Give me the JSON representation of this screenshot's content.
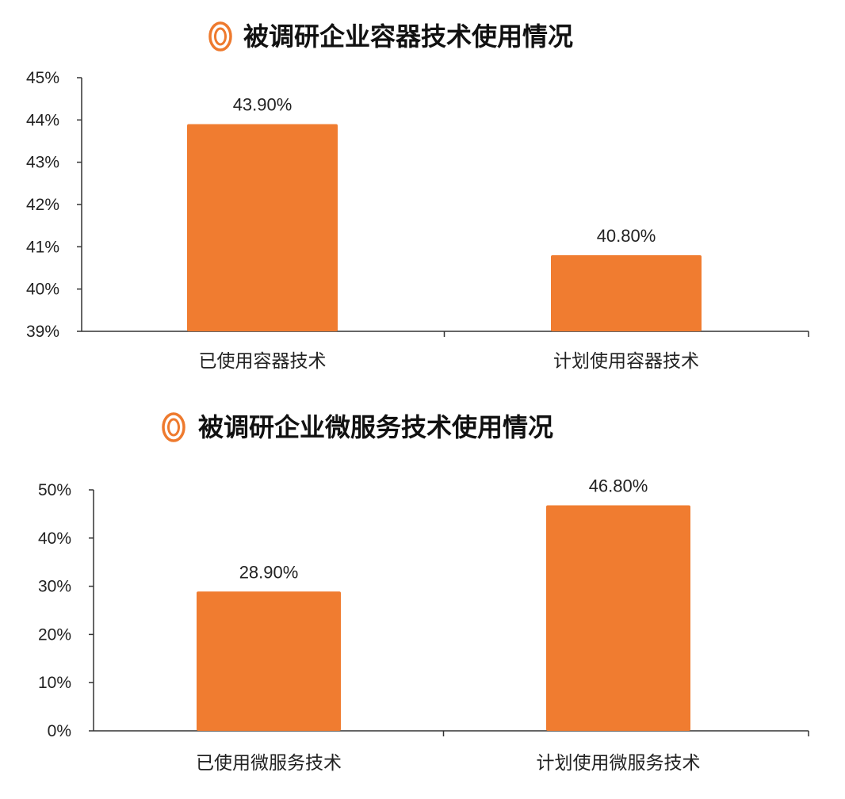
{
  "chart_data": [
    {
      "type": "bar",
      "title": "被调研企业容器技术使用情况",
      "categories": [
        "已使用容器技术",
        "计划使用容器技术"
      ],
      "values": [
        43.9,
        40.8
      ],
      "data_labels": [
        "43.90%",
        "40.80%"
      ],
      "ylim": [
        39,
        45
      ],
      "yticks": [
        39,
        40,
        41,
        42,
        43,
        44,
        45
      ],
      "ytick_labels": [
        "39%",
        "40%",
        "41%",
        "42%",
        "43%",
        "44%",
        "45%"
      ],
      "xlabel": "",
      "ylabel": "",
      "grid": false,
      "legend": "none"
    },
    {
      "type": "bar",
      "title": "被调研企业微服务技术使用情况",
      "categories": [
        "已使用微服务技术",
        "计划使用微服务技术"
      ],
      "values": [
        28.9,
        46.8
      ],
      "data_labels": [
        "28.90%",
        "46.80%"
      ],
      "ylim": [
        0,
        50
      ],
      "yticks": [
        0,
        10,
        20,
        30,
        40,
        50
      ],
      "ytick_labels": [
        "0%",
        "10%",
        "20%",
        "30%",
        "40%",
        "50%"
      ],
      "xlabel": "",
      "ylabel": "",
      "grid": false,
      "legend": "none"
    }
  ],
  "colors": {
    "bar": "#f07c30",
    "title_icon": "#ee7a2e",
    "axis": "#333333"
  },
  "icons": [
    "concentric-ring-icon"
  ]
}
